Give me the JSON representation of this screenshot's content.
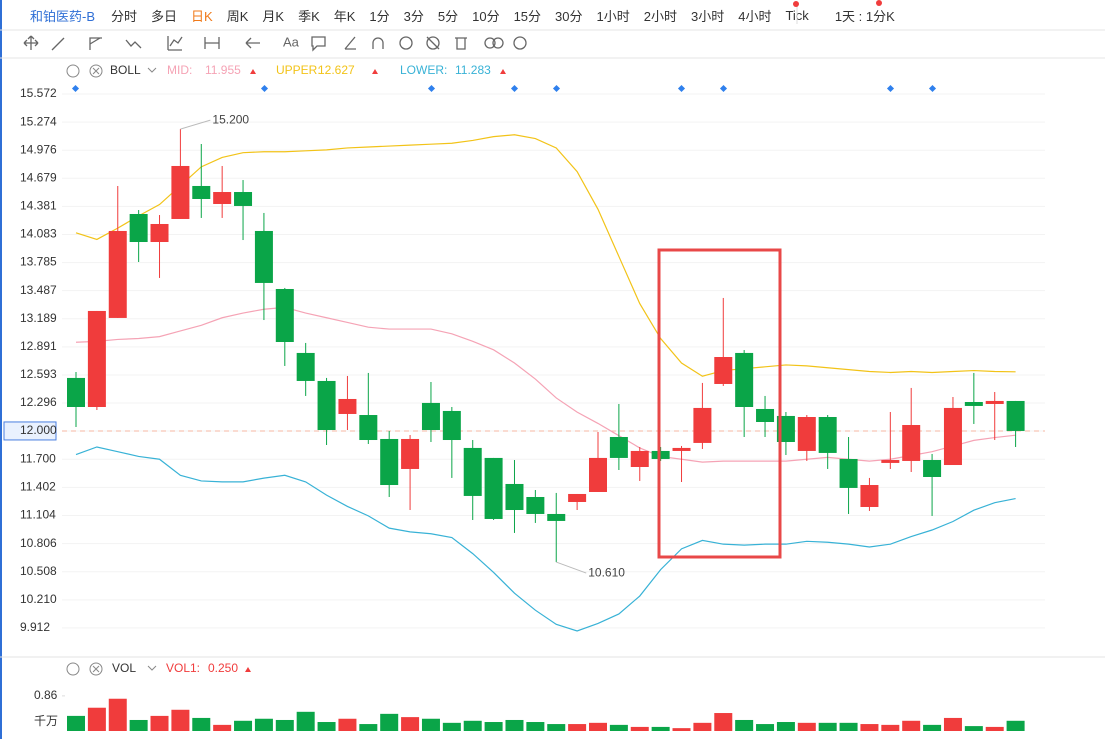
{
  "toolbar": {
    "symbol": "和铂医药-B",
    "periods": [
      "分时",
      "多日",
      "日K",
      "周K",
      "月K",
      "季K",
      "年K",
      "1分",
      "3分",
      "5分",
      "10分",
      "15分",
      "30分",
      "1小时",
      "2小时",
      "3小时",
      "4小时",
      "Tick"
    ],
    "active": 2,
    "range": "1天 : 1分K"
  },
  "chart_data": [
    {
      "type": "candlestick",
      "indicator": "BOLL",
      "open": [
        12.562,
        12.254,
        13.198,
        14.3,
        14.003,
        14.247,
        14.597,
        14.406,
        14.533,
        14.12,
        13.505,
        12.827,
        12.53,
        12.18,
        12.169,
        11.915,
        11.597,
        12.297,
        12.212,
        11.82,
        11.714,
        11.438,
        11.3,
        11.12,
        11.247,
        11.353,
        11.936,
        11.618,
        11.788,
        11.788,
        11.873,
        12.498,
        12.827,
        12.233,
        12.159,
        11.788,
        12.148,
        11.703,
        11.194,
        11.661,
        11.682,
        11.692,
        11.639,
        12.307,
        12.286,
        12.318
      ],
      "high": [
        12.625,
        13.272,
        14.597,
        14.342,
        14.289,
        15.2,
        15.042,
        14.809,
        14.66,
        14.311,
        13.516,
        12.933,
        12.562,
        12.583,
        12.615,
        12.0,
        11.957,
        12.519,
        12.254,
        11.904,
        11.714,
        11.692,
        11.374,
        11.343,
        11.332,
        11.989,
        12.286,
        11.83,
        11.83,
        11.841,
        12.509,
        13.41,
        12.858,
        12.371,
        12.201,
        12.169,
        12.169,
        11.936,
        11.502,
        12.201,
        12.456,
        11.756,
        12.36,
        12.615,
        12.413,
        12.318
      ],
      "low": [
        12.042,
        12.222,
        13.198,
        13.791,
        13.622,
        14.247,
        14.258,
        14.258,
        14.024,
        13.176,
        12.689,
        12.371,
        11.851,
        12.01,
        11.862,
        11.3,
        11.162,
        11.883,
        11.502,
        11.056,
        11.056,
        10.919,
        11.025,
        10.61,
        11.162,
        11.353,
        11.586,
        11.47,
        11.682,
        11.459,
        11.809,
        12.477,
        11.936,
        11.936,
        11.745,
        11.682,
        11.597,
        11.12,
        11.152,
        11.597,
        11.565,
        11.099,
        11.639,
        12.074,
        11.904,
        11.83
      ],
      "close": [
        12.254,
        13.272,
        14.12,
        14.003,
        14.194,
        14.809,
        14.459,
        14.533,
        14.385,
        13.569,
        12.943,
        12.53,
        12.01,
        12.339,
        11.904,
        11.427,
        11.915,
        12.01,
        11.904,
        11.311,
        11.067,
        11.162,
        11.12,
        11.046,
        11.332,
        11.714,
        11.714,
        11.788,
        11.703,
        11.82,
        12.244,
        12.784,
        12.254,
        12.095,
        11.883,
        12.148,
        11.767,
        11.396,
        11.427,
        11.692,
        12.063,
        11.512,
        12.244,
        12.265,
        12.318,
        12.0
      ],
      "up_color": "#f03c3c",
      "down_color": "#0aa548",
      "series": [
        {
          "name": "MID:",
          "color": "#f5a3b5",
          "values": [
            12.94,
            12.95,
            12.97,
            12.98,
            13.0,
            13.06,
            13.12,
            13.2,
            13.25,
            13.29,
            13.31,
            13.25,
            13.2,
            13.15,
            13.1,
            13.08,
            13.08,
            13.08,
            13.03,
            12.95,
            12.86,
            12.72,
            12.55,
            12.35,
            12.2,
            12.08,
            11.95,
            11.82,
            11.73,
            11.7,
            11.67,
            11.68,
            11.68,
            11.68,
            11.68,
            11.7,
            11.72,
            11.7,
            11.68,
            11.7,
            11.74,
            11.78,
            11.84,
            11.9,
            11.93,
            11.955
          ]
        },
        {
          "name": "UPPER:",
          "color": "#f2c318",
          "values": [
            14.1,
            14.03,
            14.15,
            14.28,
            14.4,
            14.6,
            14.8,
            14.9,
            14.95,
            14.96,
            14.96,
            14.97,
            14.98,
            15.0,
            15.01,
            15.02,
            15.03,
            15.04,
            15.05,
            15.08,
            15.12,
            15.14,
            15.1,
            15.0,
            14.75,
            14.35,
            13.85,
            13.35,
            12.98,
            12.72,
            12.58,
            12.64,
            12.66,
            12.68,
            12.7,
            12.69,
            12.67,
            12.65,
            12.63,
            12.62,
            12.63,
            12.62,
            12.63,
            12.64,
            12.63,
            12.627
          ]
        },
        {
          "name": "LOWER:",
          "color": "#38b2d6",
          "values": [
            11.75,
            11.83,
            11.78,
            11.73,
            11.7,
            11.53,
            11.47,
            11.46,
            11.46,
            11.5,
            11.53,
            11.46,
            11.32,
            11.2,
            11.1,
            10.97,
            10.93,
            10.91,
            10.87,
            10.7,
            10.5,
            10.28,
            10.1,
            9.95,
            9.88,
            9.96,
            10.06,
            10.25,
            10.53,
            10.75,
            10.84,
            10.8,
            10.79,
            10.8,
            10.8,
            10.83,
            10.82,
            10.8,
            10.77,
            10.8,
            10.88,
            10.95,
            11.04,
            11.16,
            11.24,
            11.283
          ]
        }
      ],
      "ylim": [
        9.625,
        15.678
      ],
      "yticks": [
        15.572,
        15.274,
        14.976,
        14.679,
        14.381,
        14.083,
        13.785,
        13.487,
        13.189,
        12.891,
        12.593,
        12.296,
        {
          "value": 12,
          "label": "12.000",
          "highlight": true
        },
        {
          "value": 11.7,
          "label": "11.700"
        },
        11.402,
        11.104,
        10.806,
        10.508,
        {
          "value": 10.21,
          "label": "10.210"
        },
        9.912
      ],
      "annotations": [
        {
          "value": 15.2,
          "label": "15.200",
          "of": "high"
        },
        {
          "value": 10.61,
          "label": "10.610",
          "of": "low"
        }
      ],
      "grid": true
    },
    {
      "type": "bar",
      "indicator": "VOL",
      "unit": "千万",
      "series": [
        {
          "name": "VOL1:",
          "color": "#f03c3c",
          "values": [
            0.37,
            0.57,
            0.79,
            0.27,
            0.37,
            0.52,
            0.32,
            0.15,
            0.25,
            0.3,
            0.27,
            0.47,
            0.22,
            0.3,
            0.17,
            0.42,
            0.34,
            0.3,
            0.2,
            0.25,
            0.22,
            0.27,
            0.22,
            0.17,
            0.17,
            0.2,
            0.15,
            0.1,
            0.1,
            0.07,
            0.2,
            0.44,
            0.27,
            0.17,
            0.22,
            0.2,
            0.2,
            0.2,
            0.17,
            0.15,
            0.25,
            0.15,
            0.32,
            0.12,
            0.1,
            0.25
          ],
          "last_label": "0.250"
        }
      ],
      "ylim": [
        0,
        1.2
      ],
      "yticks": [
        0.86
      ]
    }
  ]
}
